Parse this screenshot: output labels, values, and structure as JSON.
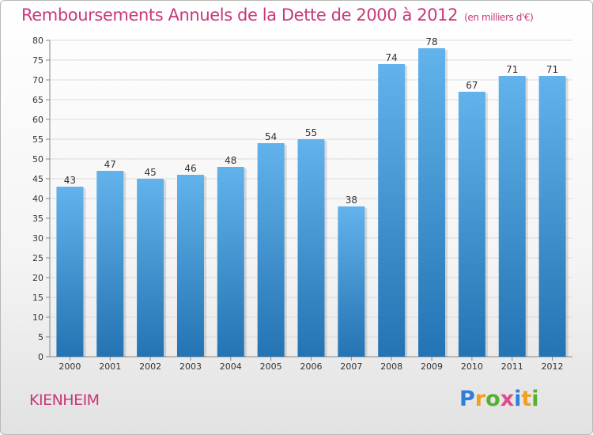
{
  "title": "Remboursements Annuels de la Dette de 2000 à 2012",
  "unit_label": "(en milliers d'€)",
  "place": "KIENHEIM",
  "logo": {
    "text": "Proxiti",
    "letters": [
      "P",
      "r",
      "o",
      "x",
      "i",
      "t",
      "i"
    ],
    "colors": [
      "#2f7fd8",
      "#f0a020",
      "#58b033",
      "#e04a8a",
      "#2f7fd8",
      "#f0a020",
      "#58b033"
    ]
  },
  "colors": {
    "title": "#c8377a",
    "bar_top": "#62b3ec",
    "bar_bottom": "#2473b3"
  },
  "chart_data": {
    "type": "bar",
    "title": "Remboursements Annuels de la Dette de 2000 à 2012",
    "subtitle": "(en milliers d'€)",
    "xlabel": "",
    "ylabel": "",
    "categories": [
      "2000",
      "2001",
      "2002",
      "2003",
      "2004",
      "2005",
      "2006",
      "2007",
      "2008",
      "2009",
      "2010",
      "2011",
      "2012"
    ],
    "values": [
      43,
      47,
      45,
      46,
      48,
      54,
      55,
      38,
      74,
      78,
      67,
      71,
      71
    ],
    "data_labels": [
      "43",
      "47",
      "45",
      "46",
      "48",
      "54",
      "55",
      "38",
      "74",
      "78",
      "67",
      "71",
      "71"
    ],
    "ylim": [
      0,
      80
    ],
    "yticks": [
      0,
      5,
      10,
      15,
      20,
      25,
      30,
      35,
      40,
      45,
      50,
      55,
      60,
      65,
      70,
      75,
      80
    ],
    "ytick_labels": [
      "0",
      "5",
      "10",
      "15",
      "20",
      "25",
      "30",
      "35",
      "40",
      "45",
      "50",
      "55",
      "60",
      "65",
      "70",
      "75",
      "80"
    ],
    "grid": true,
    "legend": "none"
  }
}
